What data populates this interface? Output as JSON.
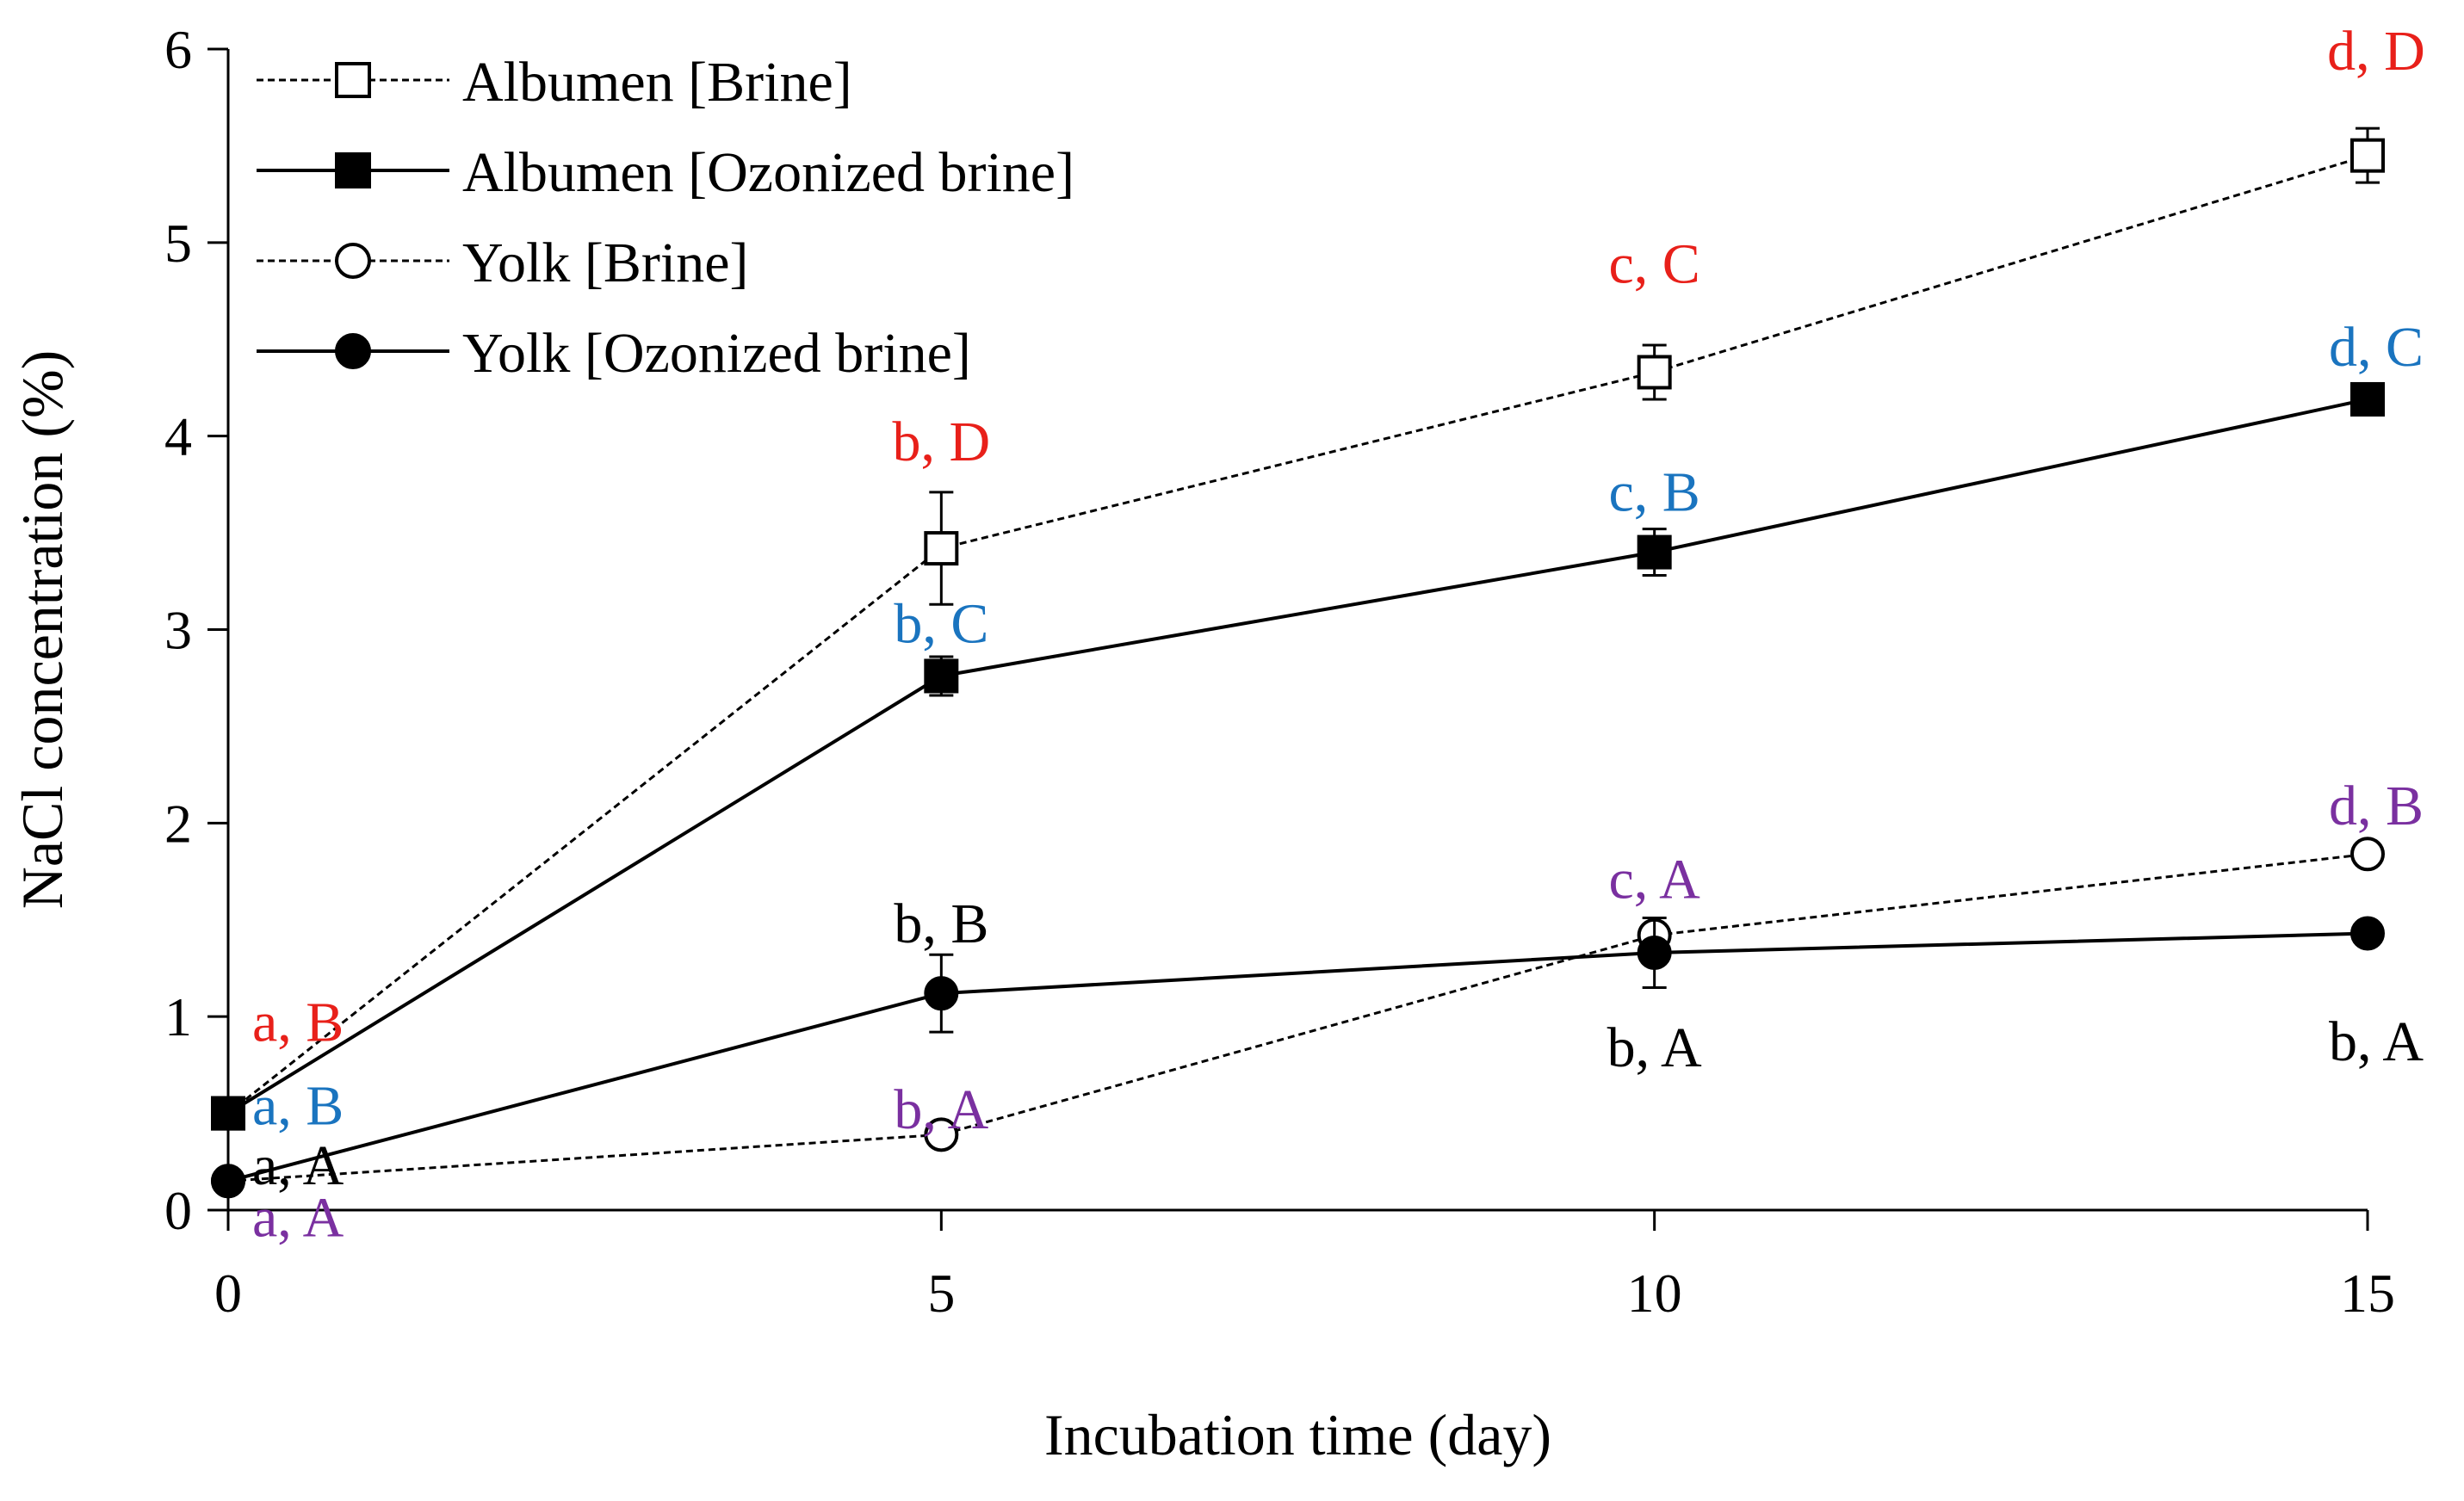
{
  "chart_data": {
    "type": "line",
    "title": "",
    "xlabel": "Incubation time (day)",
    "ylabel": "NaCl concentration (%)",
    "xlim": [
      0,
      15
    ],
    "ylim": [
      0,
      6
    ],
    "xticks": [
      0,
      5,
      10,
      15
    ],
    "yticks": [
      0,
      1,
      2,
      3,
      4,
      5,
      6
    ],
    "grid": false,
    "legend_position": "top-left",
    "x": [
      0,
      5,
      10,
      15
    ],
    "series": [
      {
        "name": "Albumen [Brine]",
        "marker": "open-square",
        "line": "dashed",
        "values": [
          0.5,
          3.42,
          4.33,
          5.45
        ],
        "errors": [
          0.03,
          0.29,
          0.14,
          0.14
        ]
      },
      {
        "name": "Albumen [Ozonized brine]",
        "marker": "filled-square",
        "line": "solid",
        "values": [
          0.5,
          2.76,
          3.4,
          4.19
        ],
        "errors": [
          0.03,
          0.1,
          0.12,
          0.05
        ]
      },
      {
        "name": "Yolk [Brine]",
        "marker": "open-circle",
        "line": "dashed",
        "values": [
          0.15,
          0.39,
          1.42,
          1.84
        ],
        "errors": [
          0.02,
          0.05,
          0.04,
          0.05
        ]
      },
      {
        "name": "Yolk [Ozonized brine]",
        "marker": "filled-circle",
        "line": "solid",
        "values": [
          0.15,
          1.12,
          1.33,
          1.43
        ],
        "errors": [
          0.02,
          0.2,
          0.18,
          0.04
        ]
      }
    ],
    "annotations": [
      {
        "text": "a, B",
        "x": 0,
        "y": 0.98,
        "color": "#e8201a"
      },
      {
        "text": "b, D",
        "x": 5,
        "y": 3.98,
        "color": "#e8201a"
      },
      {
        "text": "c, C",
        "x": 10,
        "y": 4.9,
        "color": "#e8201a"
      },
      {
        "text": "d, D",
        "x": 15,
        "y": 6.0,
        "color": "#e8201a"
      },
      {
        "text": "a, B",
        "x": 0,
        "y": 0.55,
        "color": "#1a74bf"
      },
      {
        "text": "b, C",
        "x": 5,
        "y": 3.04,
        "color": "#1a74bf"
      },
      {
        "text": "c, B",
        "x": 10,
        "y": 3.72,
        "color": "#1a74bf"
      },
      {
        "text": "d, C",
        "x": 15,
        "y": 4.47,
        "color": "#1a74bf"
      },
      {
        "text": "a, A",
        "x": 0,
        "y": 0.24,
        "color": "#000000"
      },
      {
        "text": "b, B",
        "x": 5,
        "y": 1.49,
        "color": "#000000"
      },
      {
        "text": "b, A",
        "x": 10,
        "y": 0.85,
        "color": "#000000"
      },
      {
        "text": "b, A",
        "x": 15,
        "y": 0.88,
        "color": "#000000"
      },
      {
        "text": "a, A",
        "x": 0,
        "y": -0.03,
        "color": "#7a30a0"
      },
      {
        "text": "b, A",
        "x": 5,
        "y": 0.53,
        "color": "#7a30a0"
      },
      {
        "text": "c, A",
        "x": 10,
        "y": 1.72,
        "color": "#7a30a0"
      },
      {
        "text": "d, B",
        "x": 15,
        "y": 2.1,
        "color": "#7a30a0"
      }
    ]
  }
}
